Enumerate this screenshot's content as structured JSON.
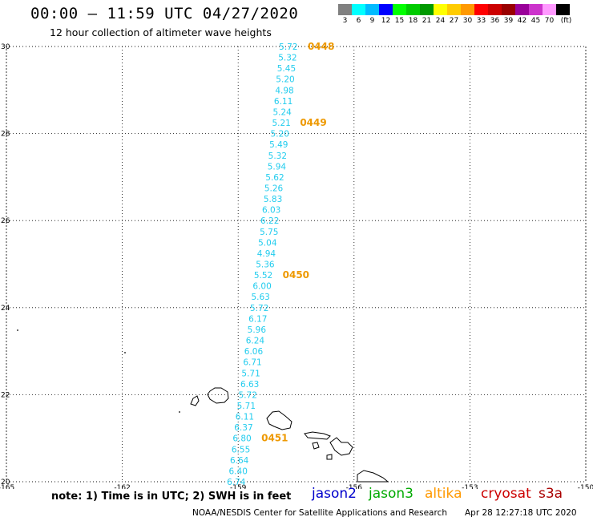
{
  "title": "00:00 – 11:59 UTC 04/27/2020",
  "subtitle": "12 hour collection of altimeter wave heights",
  "legend": {
    "colors": [
      "#808080",
      "#00ffff",
      "#00bbff",
      "#0000ff",
      "#00ff00",
      "#00cc00",
      "#009900",
      "#ffff00",
      "#ffcc00",
      "#ff9900",
      "#ff0000",
      "#cc0000",
      "#990000",
      "#990099",
      "#cc33cc",
      "#ff99ff",
      "#000000"
    ],
    "labels": [
      "3",
      "6",
      "9",
      "12",
      "15",
      "18",
      "21",
      "24",
      "27",
      "30",
      "33",
      "36",
      "39",
      "42",
      "45",
      "70",
      "(ft)"
    ]
  },
  "map": {
    "lat_ticks": [
      "30",
      "28",
      "26",
      "24",
      "22",
      "20"
    ],
    "lon_ticks": [
      "-165",
      "-162",
      "-159",
      "-156",
      "-153",
      "-150"
    ],
    "lat_values": [
      30,
      28,
      26,
      24,
      22,
      20
    ],
    "lon_values": [
      -165,
      -162,
      -159,
      -156,
      -153,
      -150
    ],
    "lat_range": [
      20,
      30
    ],
    "lon_range": [
      -165,
      -150
    ],
    "wave_color": "#22ccee",
    "time_color": "#ee9900",
    "wave_heights": [
      {
        "lat": 30.0,
        "lon": -157.7,
        "swh": "5.72"
      },
      {
        "lat": 29.75,
        "lon": -157.72,
        "swh": "5.32"
      },
      {
        "lat": 29.5,
        "lon": -157.75,
        "swh": "5.45"
      },
      {
        "lat": 29.25,
        "lon": -157.78,
        "swh": "5.20"
      },
      {
        "lat": 29.0,
        "lon": -157.8,
        "swh": "4.98"
      },
      {
        "lat": 28.75,
        "lon": -157.83,
        "swh": "6.11"
      },
      {
        "lat": 28.5,
        "lon": -157.86,
        "swh": "5.24"
      },
      {
        "lat": 28.25,
        "lon": -157.88,
        "swh": "5.21"
      },
      {
        "lat": 28.0,
        "lon": -157.92,
        "swh": "5.20"
      },
      {
        "lat": 27.75,
        "lon": -157.95,
        "swh": "5.49"
      },
      {
        "lat": 27.5,
        "lon": -157.98,
        "swh": "5.32"
      },
      {
        "lat": 27.25,
        "lon": -158.0,
        "swh": "5.94"
      },
      {
        "lat": 27.0,
        "lon": -158.05,
        "swh": "5.62"
      },
      {
        "lat": 26.75,
        "lon": -158.08,
        "swh": "5.26"
      },
      {
        "lat": 26.5,
        "lon": -158.1,
        "swh": "5.83"
      },
      {
        "lat": 26.25,
        "lon": -158.14,
        "swh": "6.03"
      },
      {
        "lat": 26.0,
        "lon": -158.18,
        "swh": "6.22"
      },
      {
        "lat": 25.75,
        "lon": -158.2,
        "swh": "5.75"
      },
      {
        "lat": 25.5,
        "lon": -158.24,
        "swh": "5.04"
      },
      {
        "lat": 25.25,
        "lon": -158.27,
        "swh": "4.94"
      },
      {
        "lat": 25.0,
        "lon": -158.3,
        "swh": "5.36"
      },
      {
        "lat": 24.75,
        "lon": -158.35,
        "swh": "5.52"
      },
      {
        "lat": 24.5,
        "lon": -158.38,
        "swh": "6.00"
      },
      {
        "lat": 24.25,
        "lon": -158.42,
        "swh": "5.63"
      },
      {
        "lat": 24.0,
        "lon": -158.45,
        "swh": "5.72"
      },
      {
        "lat": 23.75,
        "lon": -158.49,
        "swh": "6.17"
      },
      {
        "lat": 23.5,
        "lon": -158.52,
        "swh": "5.96"
      },
      {
        "lat": 23.25,
        "lon": -158.56,
        "swh": "6.24"
      },
      {
        "lat": 23.0,
        "lon": -158.6,
        "swh": "6.06"
      },
      {
        "lat": 22.75,
        "lon": -158.63,
        "swh": "6.71"
      },
      {
        "lat": 22.5,
        "lon": -158.67,
        "swh": "5.71"
      },
      {
        "lat": 22.25,
        "lon": -158.7,
        "swh": "6.63"
      },
      {
        "lat": 22.0,
        "lon": -158.75,
        "swh": "5.72"
      },
      {
        "lat": 21.75,
        "lon": -158.79,
        "swh": "5.71"
      },
      {
        "lat": 21.5,
        "lon": -158.83,
        "swh": "6.11"
      },
      {
        "lat": 21.25,
        "lon": -158.86,
        "swh": "6.37"
      },
      {
        "lat": 21.0,
        "lon": -158.9,
        "swh": "6.80"
      },
      {
        "lat": 20.75,
        "lon": -158.93,
        "swh": "6.55"
      },
      {
        "lat": 20.5,
        "lon": -158.97,
        "swh": "6.64"
      },
      {
        "lat": 20.25,
        "lon": -159.0,
        "swh": "6.40"
      },
      {
        "lat": 20.0,
        "lon": -159.05,
        "swh": "6.74"
      }
    ],
    "time_labels": [
      {
        "lat": 30.0,
        "lon": -157.2,
        "text": "0448"
      },
      {
        "lat": 28.25,
        "lon": -157.4,
        "text": "0449"
      },
      {
        "lat": 24.75,
        "lon": -157.85,
        "text": "0450"
      },
      {
        "lat": 21.0,
        "lon": -158.4,
        "text": "0451"
      }
    ]
  },
  "note": "note: 1) Time is in UTC; 2) SWH is in feet",
  "satellites": [
    {
      "name": "jason2",
      "color": "#0000cc"
    },
    {
      "name": "jason3",
      "color": "#00aa00"
    },
    {
      "name": "altika",
      "color": "#ff9900"
    },
    {
      "name": "cryosat",
      "color": "#cc0000"
    },
    {
      "name": "s3a",
      "color": "#aa0000"
    }
  ],
  "footer": {
    "center": "NOAA/NESDIS Center for Satellite Applications and Research",
    "timestamp": "Apr 28 12:27:18 UTC 2020"
  }
}
